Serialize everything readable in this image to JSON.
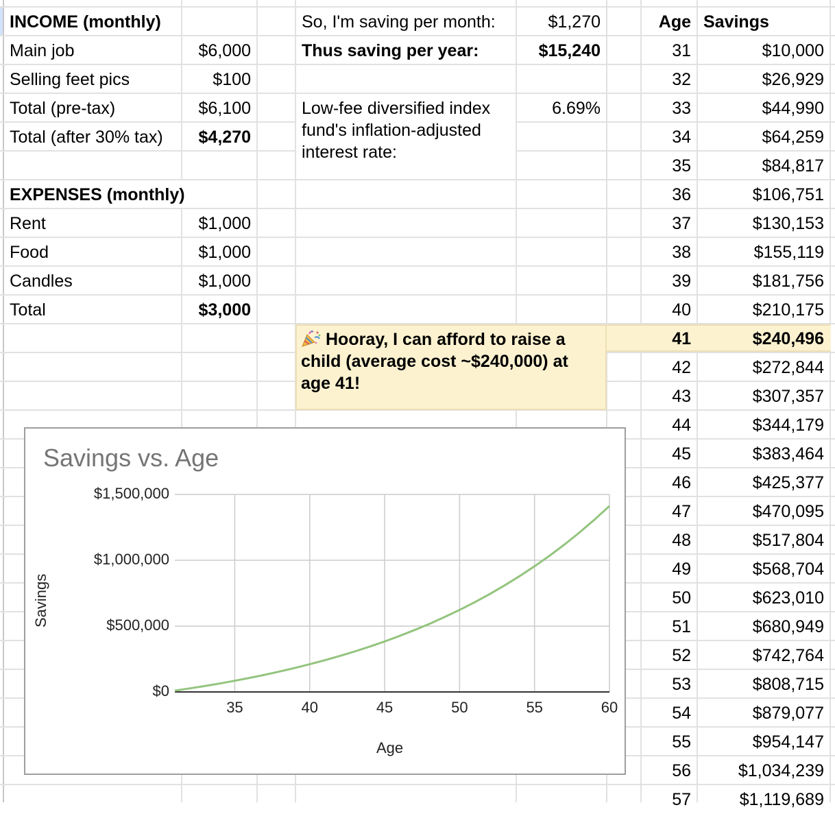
{
  "income": {
    "title": "INCOME (monthly)",
    "rows": [
      {
        "label": "Main job",
        "value": "$6,000"
      },
      {
        "label": "Selling feet pics",
        "value": "$100"
      },
      {
        "label": "Total (pre-tax)",
        "value": "$6,100"
      },
      {
        "label": "Total (after 30% tax)",
        "value": "$4,270"
      }
    ]
  },
  "expenses": {
    "title": "EXPENSES (monthly)",
    "rows": [
      {
        "label": "Rent",
        "value": "$1,000"
      },
      {
        "label": "Food",
        "value": "$1,000"
      },
      {
        "label": "Candles",
        "value": "$1,000"
      },
      {
        "label": "Total",
        "value": "$3,000"
      }
    ]
  },
  "summary": {
    "monthly_label": "So, I'm saving per month:",
    "monthly_value": "$1,270",
    "yearly_label": "Thus saving per year:",
    "yearly_value": "$15,240",
    "rate_label": "Low-fee diversified index fund's inflation-adjusted interest rate:",
    "rate_value": "6.69%"
  },
  "callout": {
    "icon": "party-popper-icon",
    "text": "Hooray, I can afford to raise a child (average cost ~$240,000) at age 41!",
    "highlight_color": "#fdf2d0"
  },
  "savings_table": {
    "headers": {
      "age": "Age",
      "savings": "Savings"
    },
    "rows": [
      {
        "age": "31",
        "savings": "$10,000"
      },
      {
        "age": "32",
        "savings": "$26,929"
      },
      {
        "age": "33",
        "savings": "$44,990"
      },
      {
        "age": "34",
        "savings": "$64,259"
      },
      {
        "age": "35",
        "savings": "$84,817"
      },
      {
        "age": "36",
        "savings": "$106,751"
      },
      {
        "age": "37",
        "savings": "$130,153"
      },
      {
        "age": "38",
        "savings": "$155,119"
      },
      {
        "age": "39",
        "savings": "$181,756"
      },
      {
        "age": "40",
        "savings": "$210,175"
      },
      {
        "age": "41",
        "savings": "$240,496"
      },
      {
        "age": "42",
        "savings": "$272,844"
      },
      {
        "age": "43",
        "savings": "$307,357"
      },
      {
        "age": "44",
        "savings": "$344,179"
      },
      {
        "age": "45",
        "savings": "$383,464"
      },
      {
        "age": "46",
        "savings": "$425,377"
      },
      {
        "age": "47",
        "savings": "$470,095"
      },
      {
        "age": "48",
        "savings": "$517,804"
      },
      {
        "age": "49",
        "savings": "$568,704"
      },
      {
        "age": "50",
        "savings": "$623,010"
      },
      {
        "age": "51",
        "savings": "$680,949"
      },
      {
        "age": "52",
        "savings": "$742,764"
      },
      {
        "age": "53",
        "savings": "$808,715"
      },
      {
        "age": "54",
        "savings": "$879,077"
      },
      {
        "age": "55",
        "savings": "$954,147"
      },
      {
        "age": "56",
        "savings": "$1,034,239"
      },
      {
        "age": "57",
        "savings": "$1,119,689"
      }
    ],
    "highlight_age": "41"
  },
  "chart_data": {
    "type": "line",
    "title": "Savings vs. Age",
    "xlabel": "Age",
    "ylabel": "Savings",
    "x": [
      31,
      32,
      33,
      34,
      35,
      36,
      37,
      38,
      39,
      40,
      41,
      42,
      43,
      44,
      45,
      46,
      47,
      48,
      49,
      50,
      51,
      52,
      53,
      54,
      55,
      56,
      57,
      58,
      59,
      60
    ],
    "series": [
      {
        "name": "Savings",
        "color": "#93c47d",
        "values": [
          10000,
          26929,
          44990,
          64259,
          84817,
          106751,
          130153,
          155119,
          181756,
          210175,
          240496,
          272844,
          307357,
          344179,
          383464,
          425377,
          470095,
          517804,
          568704,
          623010,
          680949,
          742764,
          808715,
          879077,
          954147,
          1034239,
          1119689,
          1210850,
          1308110,
          1411870
        ]
      }
    ],
    "xlim": [
      31,
      60
    ],
    "ylim": [
      0,
      1500000
    ],
    "xticks": [
      "35",
      "40",
      "45",
      "50",
      "55",
      "60"
    ],
    "yticks": [
      "$0",
      "$500,000",
      "$1,000,000",
      "$1,500,000"
    ],
    "grid": true,
    "legend": "none"
  }
}
